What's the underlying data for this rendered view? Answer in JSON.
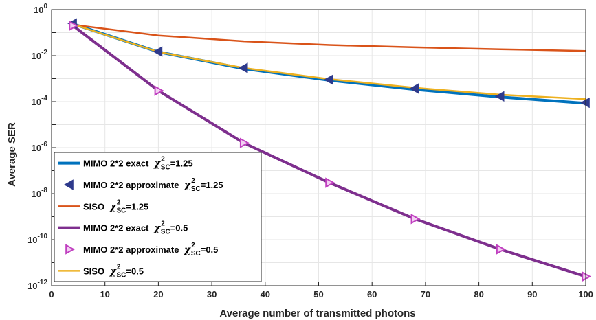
{
  "chart_data": {
    "type": "line",
    "xlabel": "Average number of transmitted photons",
    "ylabel": "Average SER",
    "xlim": [
      0,
      100
    ],
    "ylim_log10": [
      -12,
      0
    ],
    "y_scale": "log",
    "grid": true,
    "legend_position": "bottom-left",
    "x_ticks": [
      0,
      10,
      20,
      30,
      40,
      50,
      60,
      70,
      80,
      90,
      100
    ],
    "y_tick_exponents": [
      0,
      -2,
      -4,
      -6,
      -8,
      -10,
      -12
    ],
    "series": [
      {
        "name": "MIMO 2*2 exact",
        "chi_sq": "1.25",
        "style": "line",
        "color": "#0072BD",
        "x": [
          4,
          20,
          36,
          52,
          68,
          84,
          100
        ],
        "y": [
          0.24,
          0.0145,
          0.0027,
          0.00085,
          0.00034,
          0.00016,
          8.5e-05
        ]
      },
      {
        "name": "MIMO 2*2 approximate",
        "chi_sq": "1.25",
        "style": "markers",
        "marker": "left-triangle",
        "color": "#2E3A8C",
        "x": [
          4,
          20,
          36,
          52,
          68,
          84,
          100
        ],
        "y": [
          0.25,
          0.015,
          0.0029,
          0.0009,
          0.00037,
          0.00017,
          9e-05
        ]
      },
      {
        "name": "SISO",
        "chi_sq": "1.25",
        "style": "line",
        "color": "#D95319",
        "x": [
          4,
          20,
          36,
          52,
          68,
          84,
          100
        ],
        "y": [
          0.22,
          0.075,
          0.042,
          0.029,
          0.023,
          0.019,
          0.016
        ]
      },
      {
        "name": "MIMO 2*2 exact",
        "chi_sq": "0.5",
        "style": "line",
        "color": "#7E2F8E",
        "x": [
          4,
          20,
          36,
          52,
          68,
          84,
          100
        ],
        "y": [
          0.2,
          0.0003,
          1.6e-06,
          3e-08,
          8e-10,
          3.8e-11,
          2.5e-12
        ]
      },
      {
        "name": "MIMO 2*2 approximate",
        "chi_sq": "0.5",
        "style": "markers",
        "marker": "right-triangle",
        "color": "#C040C0",
        "x": [
          4,
          20,
          36,
          52,
          68,
          84,
          100
        ],
        "y": [
          0.2,
          0.0003,
          1.6e-06,
          3e-08,
          8e-10,
          3.8e-11,
          2.5e-12
        ]
      },
      {
        "name": "SISO",
        "chi_sq": "0.5",
        "style": "line",
        "color": "#EDB120",
        "x": [
          4,
          20,
          36,
          52,
          68,
          84,
          100
        ],
        "y": [
          0.23,
          0.0145,
          0.0029,
          0.00095,
          0.0004,
          0.0002,
          0.00013
        ]
      }
    ],
    "legend_entries": [
      {
        "label": "MIMO 2*2 exact",
        "sym": "χ",
        "sup": "2",
        "sub": "SC",
        "value": "=1.25"
      },
      {
        "label": "MIMO 2*2 approximate",
        "sym": "χ",
        "sup": "2",
        "sub": "SC",
        "value": "=1.25"
      },
      {
        "label": "SISO",
        "sym": "χ",
        "sup": "2",
        "sub": "SC",
        "value": "=1.25"
      },
      {
        "label": "MIMO 2*2 exact",
        "sym": "χ",
        "sup": "2",
        "sub": "SC",
        "value": "=0.5"
      },
      {
        "label": "MIMO 2*2 approximate",
        "sym": "χ",
        "sup": "2",
        "sub": "SC",
        "value": "=0.5"
      },
      {
        "label": "SISO",
        "sym": "χ",
        "sup": "2",
        "sub": "SC",
        "value": "=0.5"
      }
    ]
  }
}
